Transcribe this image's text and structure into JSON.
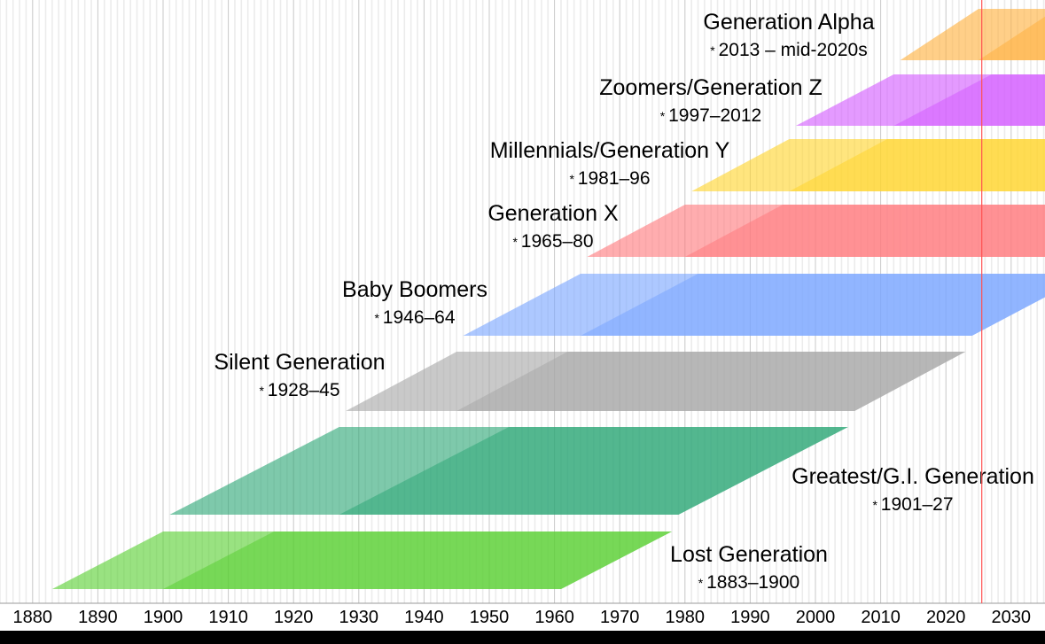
{
  "chart_data": {
    "type": "timeline",
    "title": "",
    "xlabel": "",
    "ylabel": "",
    "xlim": [
      1875,
      2035
    ],
    "x_ticks": [
      1880,
      1890,
      1900,
      1910,
      1920,
      1930,
      1940,
      1950,
      1960,
      1970,
      1980,
      1990,
      2000,
      2010,
      2020,
      2030
    ],
    "grid": "vertical (yearly minor, decade major)",
    "current_year_marker": 2025.5,
    "marker_color": "#ff5050",
    "series": [
      {
        "name": "Lost Generation",
        "range_label": "1883–1900",
        "start": 1883,
        "end": 1900,
        "color": "#5bd034"
      },
      {
        "name": "Greatest/G.I. Generation",
        "range_label": "1901–27",
        "start": 1901,
        "end": 1927,
        "color": "#2fa878"
      },
      {
        "name": "Silent Generation",
        "range_label": "1928–45",
        "start": 1928,
        "end": 1945,
        "color": "#a8a8a8"
      },
      {
        "name": "Baby Boomers",
        "range_label": "1946–64",
        "start": 1946,
        "end": 1964,
        "color": "#7aa6ff"
      },
      {
        "name": "Generation X",
        "range_label": "1965–80",
        "start": 1965,
        "end": 1980,
        "color": "#ff7a7e"
      },
      {
        "name": "Millennials/Generation Y",
        "range_label": "1981–96",
        "start": 1981,
        "end": 1996,
        "color": "#ffd52e"
      },
      {
        "name": "Zoomers/Generation Z",
        "range_label": "1997–2012",
        "start": 1997,
        "end": 2012,
        "color": "#d35cff"
      },
      {
        "name": "Generation Alpha",
        "range_label": "2013 – mid-2020s",
        "start": 2013,
        "end": 2025,
        "color": "#ffb13f"
      }
    ],
    "birth_marker": "*"
  }
}
